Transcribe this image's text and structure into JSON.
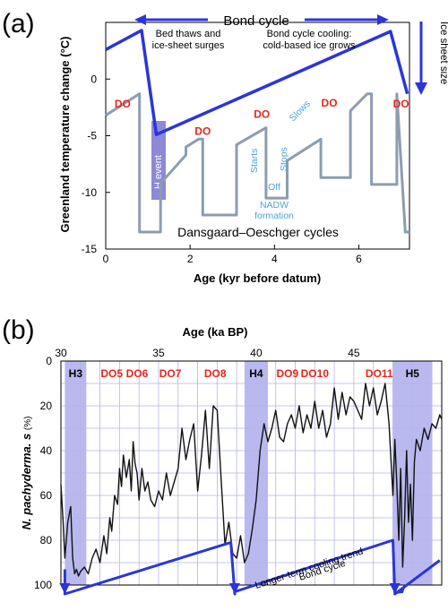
{
  "chart_data": [
    {
      "panel": "(a)",
      "type": "line",
      "xlabel": "Age (kyr before datum)",
      "ylabel": "Greenland temperature change (°C)",
      "xlim": [
        0,
        7.2
      ],
      "ylim": [
        -15,
        5
      ],
      "xticks": [
        "0",
        "2",
        "4",
        "6"
      ],
      "yticks": [
        "0",
        "-5",
        "-10",
        "-15"
      ],
      "series": [
        {
          "role": "temperature",
          "color": "#8c9db0",
          "x": [
            0,
            0.8,
            0.8,
            1.3,
            1.3,
            1.9,
            1.9,
            2.2,
            2.3,
            2.3,
            3.1,
            3.1,
            3.8,
            3.8,
            4.2,
            4.3,
            4.3,
            5.1,
            5.1,
            5.8,
            5.8,
            6.2,
            6.3,
            6.3,
            6.9,
            6.9,
            7.1,
            7.2
          ],
          "y": [
            -3.2,
            -1.3,
            -13.5,
            -13.5,
            -9.2,
            -6.7,
            -6,
            -5.3,
            -5.3,
            -12,
            -12,
            -5.8,
            -4.3,
            -10.5,
            -10.5,
            -10.5,
            -7.2,
            -5.3,
            -8.7,
            -8.7,
            -2.8,
            -1.3,
            -1.3,
            -9.3,
            -9.3,
            -1.3,
            -13.5,
            -13.5
          ]
        },
        {
          "role": "bond-cycle",
          "color": "#2b35d8",
          "x": [
            0,
            0.85,
            1.2,
            6.75,
            7.15
          ],
          "y": [
            2.6,
            4.3,
            -4.9,
            4.2,
            -1.3
          ]
        }
      ],
      "annotations": {
        "panel_label": "(a)",
        "bond_cycle": "Bond cycle",
        "left_note": [
          "Bed thaws and",
          "ice-sheet surges"
        ],
        "right_note": [
          "Bond cycle cooling:",
          "cold-based ice grows"
        ],
        "ice_sheet_size": "Ice sheet size",
        "do_label": "DO",
        "do_positions": [
          [
            0.4,
            -2.2
          ],
          [
            2.3,
            -4.6
          ],
          [
            3.7,
            -3.1
          ],
          [
            5.3,
            -2.1
          ],
          [
            7.0,
            -2.2
          ]
        ],
        "h_event": "H event",
        "starts": "Starts",
        "stops": "Stops",
        "slows": "Slows",
        "off": "Off",
        "nadw": [
          "NADW",
          "formation"
        ],
        "bottom_caption": "Dansgaard–Oeschger cycles"
      }
    },
    {
      "panel": "(b)",
      "type": "line",
      "xlabel": "Age (ka BP)",
      "ylabel": "N. pachyderma. s",
      "ylabel_unit": "(%)",
      "xlim": [
        30,
        49.5
      ],
      "ylim": [
        100,
        0
      ],
      "xticks": [
        "30",
        "35",
        "40",
        "45"
      ],
      "yticks": [
        "0",
        "20",
        "40",
        "60",
        "80",
        "100"
      ],
      "h_bands": [
        {
          "label": "H3",
          "start": 30.2,
          "end": 31.3
        },
        {
          "label": "H4",
          "start": 39.4,
          "end": 40.6
        },
        {
          "label": "H5",
          "start": 47.0,
          "end": 49.0
        }
      ],
      "do_labels": [
        {
          "label": "DO5",
          "x": 32.6
        },
        {
          "label": "DO6",
          "x": 33.9
        },
        {
          "label": "DO7",
          "x": 35.6
        },
        {
          "label": "DO8",
          "x": 37.9
        },
        {
          "label": "DO9",
          "x": 41.6
        },
        {
          "label": "DO10",
          "x": 43.0
        },
        {
          "label": "DO11",
          "x": 46.3
        }
      ],
      "series": [
        {
          "role": "n-pachyderma",
          "color": "#111111",
          "x": [
            30.0,
            30.1,
            30.2,
            30.35,
            30.5,
            30.6,
            30.7,
            30.8,
            30.9,
            31.0,
            31.2,
            31.4,
            31.6,
            31.8,
            32.0,
            32.2,
            32.35,
            32.5,
            32.6,
            32.75,
            32.9,
            33.0,
            33.1,
            33.2,
            33.35,
            33.5,
            33.6,
            33.7,
            33.8,
            33.9,
            34.0,
            34.15,
            34.3,
            34.45,
            34.6,
            34.8,
            35.0,
            35.2,
            35.4,
            35.6,
            35.8,
            36.0,
            36.2,
            36.4,
            36.6,
            36.8,
            37.0,
            37.2,
            37.4,
            37.6,
            37.8,
            38.0,
            38.2,
            38.4,
            38.6,
            38.8,
            39.0,
            39.2,
            39.4,
            39.6,
            39.8,
            40.0,
            40.2,
            40.4,
            40.6,
            40.8,
            41.0,
            41.2,
            41.4,
            41.6,
            41.8,
            42.0,
            42.2,
            42.4,
            42.6,
            42.8,
            43.0,
            43.2,
            43.4,
            43.6,
            43.8,
            44.0,
            44.2,
            44.4,
            44.6,
            44.8,
            45.0,
            45.2,
            45.4,
            45.6,
            45.8,
            46.0,
            46.2,
            46.4,
            46.6,
            46.8,
            47.0,
            47.1,
            47.2,
            47.3,
            47.4,
            47.5,
            47.6,
            47.7,
            47.8,
            47.9,
            48.0,
            48.1,
            48.2,
            48.4,
            48.6,
            48.8,
            49.0,
            49.2,
            49.4,
            49.5
          ],
          "y": [
            55,
            70,
            88,
            72,
            65,
            88,
            95,
            93,
            96,
            94,
            92,
            95,
            88,
            84,
            90,
            78,
            86,
            70,
            76,
            60,
            64,
            48,
            56,
            42,
            52,
            44,
            58,
            36,
            46,
            50,
            62,
            48,
            58,
            54,
            62,
            65,
            58,
            62,
            50,
            60,
            54,
            48,
            30,
            44,
            35,
            28,
            58,
            42,
            22,
            48,
            20,
            22,
            52,
            82,
            72,
            86,
            88,
            78,
            90,
            86,
            75,
            62,
            40,
            28,
            36,
            30,
            22,
            34,
            36,
            28,
            24,
            30,
            20,
            32,
            24,
            30,
            18,
            30,
            22,
            34,
            28,
            12,
            26,
            14,
            24,
            16,
            18,
            22,
            26,
            10,
            20,
            12,
            24,
            18,
            10,
            28,
            60,
            35,
            55,
            80,
            48,
            92,
            70,
            40,
            72,
            55,
            80,
            45,
            35,
            40,
            30,
            35,
            28,
            30,
            24,
            26
          ]
        },
        {
          "role": "bond-cycle",
          "color": "#2b35d8",
          "x": [
            30.2,
            30.2,
            38.7,
            38.9,
            38.9,
            47.0,
            47.1,
            49.4
          ],
          "y": [
            93,
            104,
            81,
            104,
            103,
            80,
            104,
            89
          ]
        }
      ],
      "annotations": {
        "panel_label": "(b)",
        "cooling_trend": "Longer-term cooling trend",
        "bond_cycle": "Bond cycle"
      }
    }
  ]
}
